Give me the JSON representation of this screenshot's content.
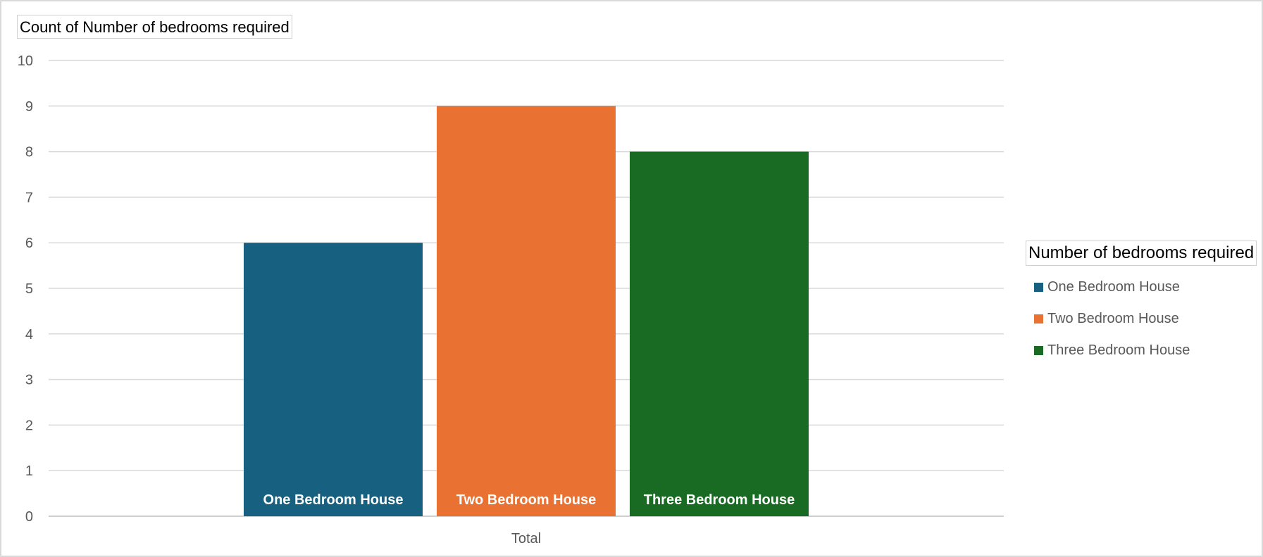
{
  "chart_data": {
    "type": "bar",
    "y_field_button": "Count of Number of bedrooms required",
    "legend_title": "Number of bedrooms required",
    "categories": [
      "Total"
    ],
    "series": [
      {
        "name": "One Bedroom House",
        "values": [
          6
        ],
        "color": "#17607F"
      },
      {
        "name": "Two Bedroom House",
        "values": [
          9
        ],
        "color": "#E97132"
      },
      {
        "name": "Three Bedroom House",
        "values": [
          8
        ],
        "color": "#196B24"
      }
    ],
    "y_ticks": [
      "0",
      "1",
      "2",
      "3",
      "4",
      "5",
      "6",
      "7",
      "8",
      "9",
      "10"
    ],
    "ylim": [
      0,
      10
    ],
    "grid": true,
    "data_labels": "series-name-inside-base",
    "legend_position": "right"
  }
}
